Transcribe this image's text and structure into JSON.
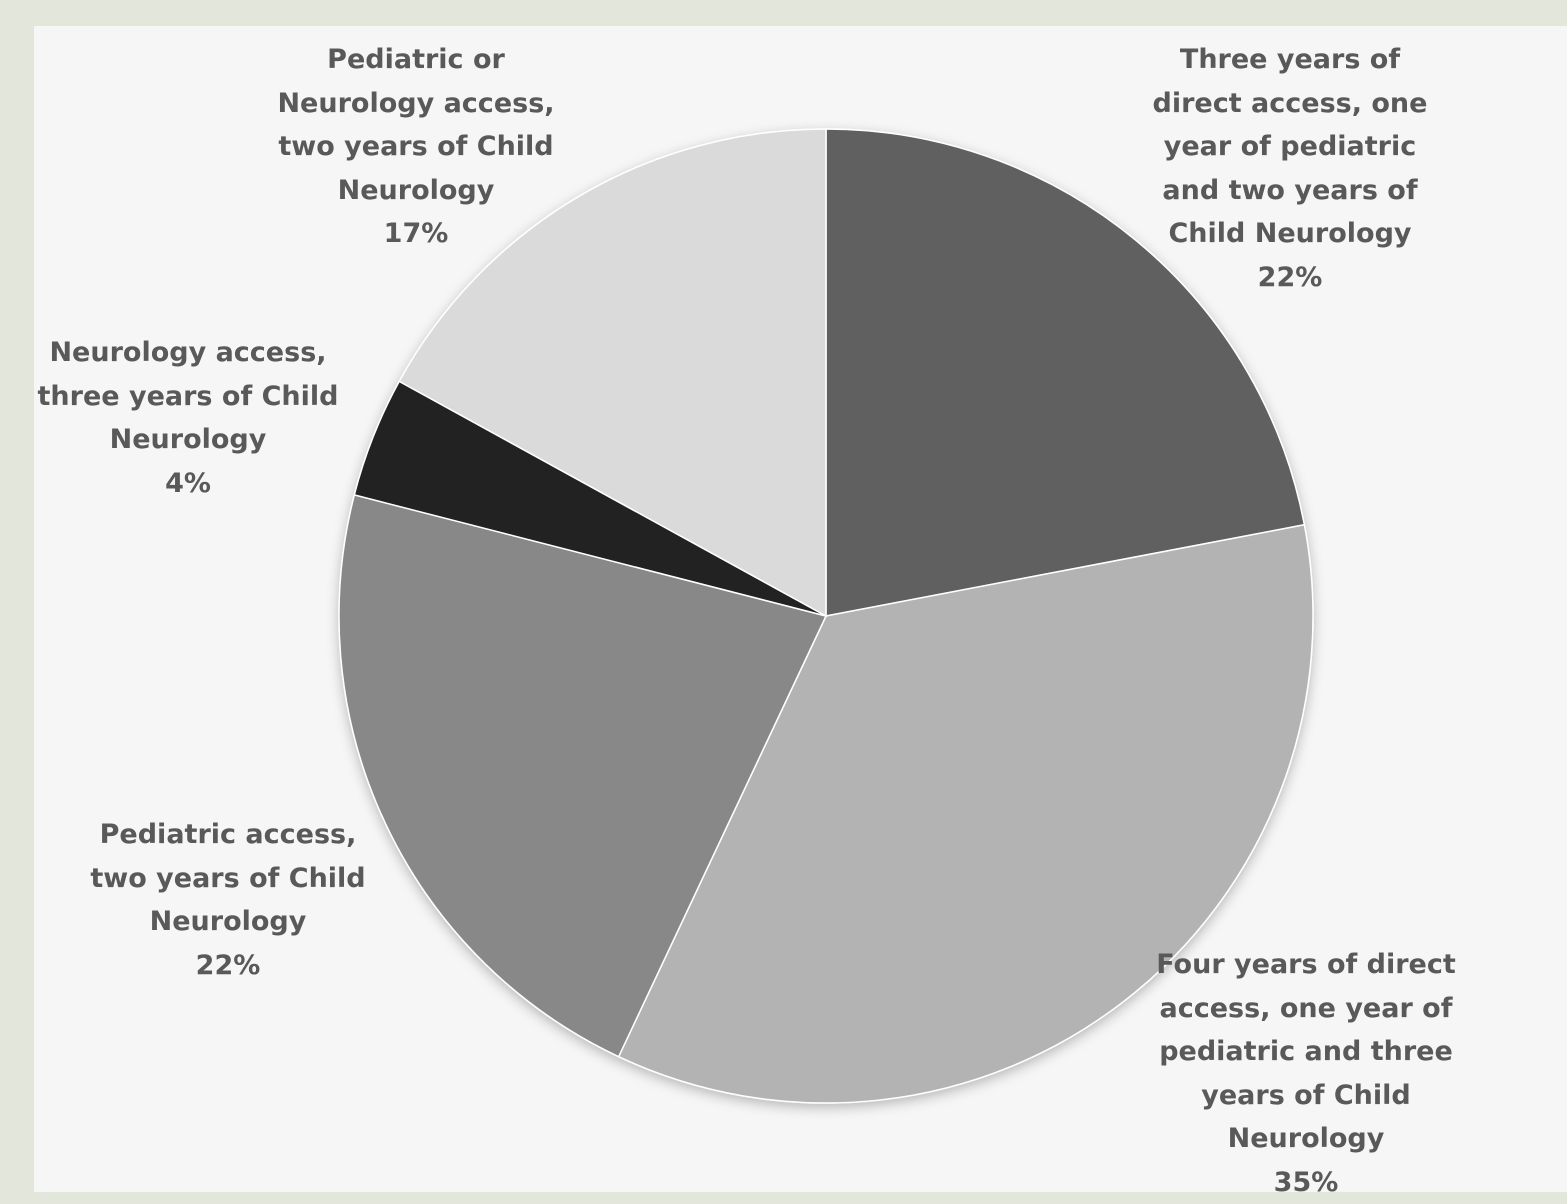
{
  "chart_data": {
    "type": "pie",
    "title": "",
    "start_angle_deg": 0,
    "direction": "clockwise",
    "slices": [
      {
        "label_lines": [
          "Three years of",
          "direct access, one",
          "year of pediatric",
          "and two years of",
          "Child Neurology"
        ],
        "value": 22,
        "display_value": "22%",
        "color": "#606060"
      },
      {
        "label_lines": [
          "Four years of direct",
          "access, one year of",
          "pediatric  and three",
          "years of Child",
          "Neurology"
        ],
        "value": 35,
        "display_value": "35%",
        "color": "#b3b3b3"
      },
      {
        "label_lines": [
          "Pediatric access,",
          "two years of Child",
          "Neurology"
        ],
        "value": 22,
        "display_value": "22%",
        "color": "#888888"
      },
      {
        "label_lines": [
          "Neurology  access,",
          "three years of Child",
          "Neurology"
        ],
        "value": 4,
        "display_value": "4%",
        "color": "#202020"
      },
      {
        "label_lines": [
          "Pediatric or",
          "Neurology access,",
          "two years of Child",
          "Neurology"
        ],
        "value": 17,
        "display_value": "17%",
        "color": "#dadada"
      }
    ]
  }
}
